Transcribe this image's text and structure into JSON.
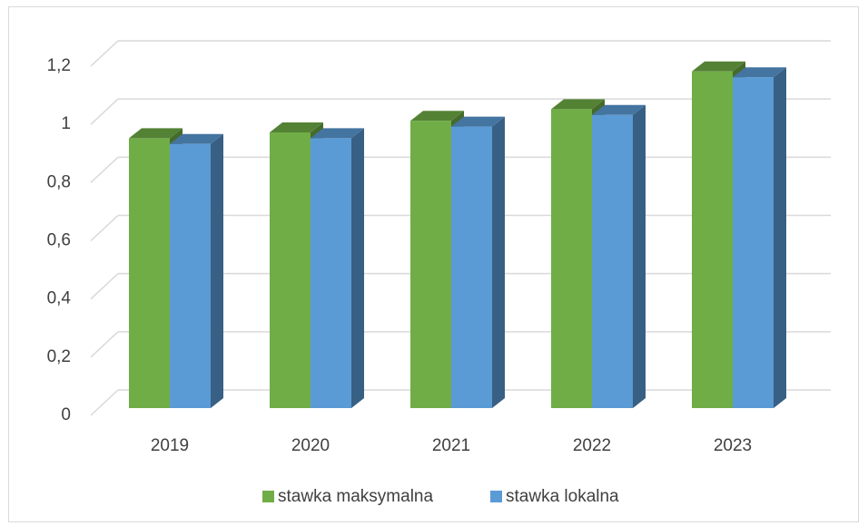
{
  "chart_data": {
    "type": "bar3d",
    "categories": [
      "2019",
      "2020",
      "2021",
      "2022",
      "2023"
    ],
    "series": [
      {
        "name": "stawka maksymalna",
        "color": "#70ad47",
        "values": [
          0.93,
          0.95,
          0.99,
          1.03,
          1.16
        ]
      },
      {
        "name": "stawka lokalna",
        "color": "#5b9bd5",
        "values": [
          0.91,
          0.93,
          0.97,
          1.01,
          1.14
        ]
      }
    ],
    "ylim": [
      0,
      1.2
    ],
    "yticks": [
      0,
      {
        "value": 0.2,
        "label": "0,2"
      },
      {
        "value": 0.4,
        "label": "0,4"
      },
      {
        "value": 0.6,
        "label": "0,6"
      },
      {
        "value": 0.8,
        "label": "0,8"
      },
      1,
      {
        "value": 1.2,
        "label": "1,2"
      }
    ],
    "grid": true,
    "legend": "bottom"
  }
}
